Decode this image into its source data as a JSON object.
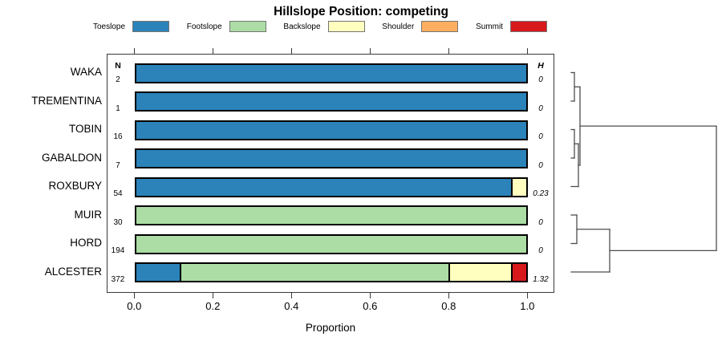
{
  "title": "Hillslope Position: competing",
  "legend": {
    "items": [
      {
        "label": "Toeslope",
        "color": "#2B83BA"
      },
      {
        "label": "Footslope",
        "color": "#ABDDA4"
      },
      {
        "label": "Backslope",
        "color": "#FFFFBF"
      },
      {
        "label": "Shoulder",
        "color": "#FDAE61"
      },
      {
        "label": "Summit",
        "color": "#D7191C"
      }
    ]
  },
  "columns": {
    "n_header": "N",
    "h_header": "H"
  },
  "axis": {
    "label": "Proportion",
    "ticks": [
      "0.0",
      "0.2",
      "0.4",
      "0.6",
      "0.8",
      "1.0"
    ],
    "tick_values": [
      0,
      0.2,
      0.4,
      0.6,
      0.8,
      1.0
    ],
    "range": [
      0,
      1
    ]
  },
  "chart_data": {
    "type": "bar",
    "orientation": "horizontal-stacked",
    "title": "Hillslope Position: competing",
    "xlabel": "Proportion",
    "xlim": [
      0,
      1
    ],
    "grid": false,
    "legend_position": "top",
    "categories": [
      "Toeslope",
      "Footslope",
      "Backslope",
      "Shoulder",
      "Summit"
    ],
    "category_colors": {
      "Toeslope": "#2B83BA",
      "Footslope": "#ABDDA4",
      "Backslope": "#FFFFBF",
      "Shoulder": "#FDAE61",
      "Summit": "#D7191C"
    },
    "rows": [
      {
        "name": "WAKA",
        "n": "2",
        "h": "0",
        "segments": [
          {
            "category": "Toeslope",
            "value": 1.0
          }
        ]
      },
      {
        "name": "TREMENTINA",
        "n": "1",
        "h": "0",
        "segments": [
          {
            "category": "Toeslope",
            "value": 1.0
          }
        ]
      },
      {
        "name": "TOBIN",
        "n": "16",
        "h": "0",
        "segments": [
          {
            "category": "Toeslope",
            "value": 1.0
          }
        ]
      },
      {
        "name": "GABALDON",
        "n": "7",
        "h": "0",
        "segments": [
          {
            "category": "Toeslope",
            "value": 1.0
          }
        ]
      },
      {
        "name": "ROXBURY",
        "n": "54",
        "h": "0.23",
        "segments": [
          {
            "category": "Toeslope",
            "value": 0.96
          },
          {
            "category": "Backslope",
            "value": 0.04
          }
        ]
      },
      {
        "name": "MUIR",
        "n": "30",
        "h": "0",
        "segments": [
          {
            "category": "Footslope",
            "value": 1.0
          }
        ]
      },
      {
        "name": "HORD",
        "n": "194",
        "h": "0",
        "segments": [
          {
            "category": "Footslope",
            "value": 1.0
          }
        ]
      },
      {
        "name": "ALCESTER",
        "n": "372",
        "h": "1.32",
        "segments": [
          {
            "category": "Toeslope",
            "value": 0.11
          },
          {
            "category": "Footslope",
            "value": 0.69
          },
          {
            "category": "Backslope",
            "value": 0.16
          },
          {
            "category": "Summit",
            "value": 0.04
          }
        ]
      }
    ],
    "dendrogram": {
      "structure": "(((WAKA,TREMENTINA),((TOBIN,GABALDON),ROXBURY)),((MUIR,HORD),ALCESTER))",
      "line_color": "#4d4d4d",
      "segments": [
        [
          712,
          90.5,
          716,
          90.5
        ],
        [
          712,
          126,
          716,
          126
        ],
        [
          716,
          90.5,
          716,
          126
        ],
        [
          716,
          108.25,
          723,
          108.25
        ],
        [
          712,
          161.5,
          716,
          161.5
        ],
        [
          712,
          197,
          716,
          197
        ],
        [
          716,
          161.5,
          716,
          197
        ],
        [
          716,
          179.25,
          721,
          179.25
        ],
        [
          712,
          232.5,
          721,
          232.5
        ],
        [
          721,
          179.25,
          721,
          232.5
        ],
        [
          721,
          205.9,
          723,
          205.9
        ],
        [
          723,
          108.25,
          723,
          205.9
        ],
        [
          723,
          157.1,
          893,
          157.1
        ],
        [
          712,
          268,
          719,
          268
        ],
        [
          712,
          303.5,
          719,
          303.5
        ],
        [
          719,
          268,
          719,
          303.5
        ],
        [
          719,
          285.75,
          760,
          285.75
        ],
        [
          712,
          339,
          760,
          339
        ],
        [
          760,
          285.75,
          760,
          339
        ],
        [
          760,
          312.4,
          893,
          312.4
        ],
        [
          893,
          157.1,
          893,
          312.4
        ]
      ]
    }
  }
}
